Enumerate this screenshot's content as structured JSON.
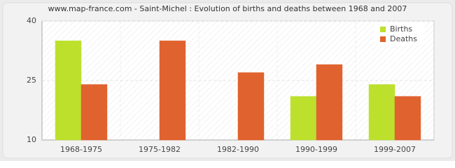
{
  "chart_data": {
    "type": "bar",
    "title": "www.map-france.com - Saint-Michel : Evolution of births and deaths between 1968 and 2007",
    "categories": [
      "1968-1975",
      "1975-1982",
      "1982-1990",
      "1990-1999",
      "1999-2007"
    ],
    "series": [
      {
        "name": "Births",
        "color": "#bde02d",
        "values": [
          35,
          10,
          10,
          21,
          24
        ]
      },
      {
        "name": "Deaths",
        "color": "#e0622e",
        "values": [
          24,
          35,
          27,
          29,
          21
        ]
      }
    ],
    "ylim": [
      10,
      40
    ],
    "yticks": [
      10,
      25,
      40
    ],
    "grid": true,
    "legend": "top-right"
  }
}
